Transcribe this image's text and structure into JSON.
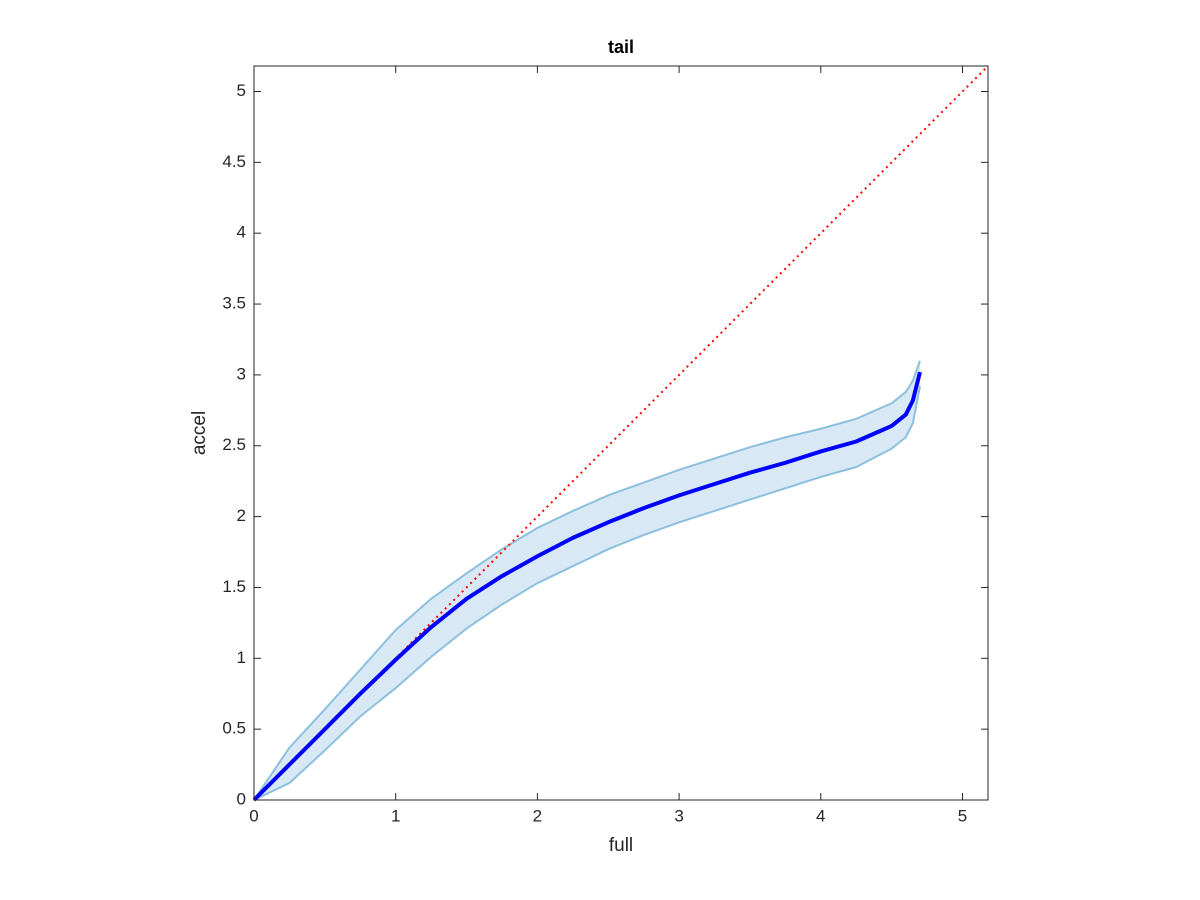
{
  "chart_data": {
    "type": "line",
    "title": "tail",
    "xlabel": "full",
    "ylabel": "accel",
    "xlim": [
      0,
      5.18
    ],
    "ylim": [
      0,
      5.18
    ],
    "xticks": [
      0,
      1,
      2,
      3,
      4,
      5
    ],
    "yticks": [
      0,
      0.5,
      1,
      1.5,
      2,
      2.5,
      3,
      3.5,
      4,
      4.5,
      5
    ],
    "x": [
      0,
      0.25,
      0.5,
      0.75,
      1,
      1.25,
      1.5,
      1.75,
      2,
      2.25,
      2.5,
      2.75,
      3,
      3.25,
      3.5,
      3.75,
      4,
      4.25,
      4.5,
      4.6,
      4.65,
      4.7
    ],
    "series": [
      {
        "color": "#0000ff",
        "values": [
          0,
          0.25,
          0.5,
          0.75,
          0.99,
          1.22,
          1.42,
          1.58,
          1.72,
          1.85,
          1.96,
          2.06,
          2.15,
          2.23,
          2.31,
          2.38,
          2.46,
          2.53,
          2.64,
          2.72,
          2.82,
          3.02
        ]
      }
    ],
    "band": {
      "fill": "#d8e8f5",
      "edge": "#8cc0de",
      "upper": [
        0,
        0.37,
        0.64,
        0.92,
        1.2,
        1.42,
        1.6,
        1.77,
        1.92,
        2.04,
        2.15,
        2.24,
        2.33,
        2.41,
        2.49,
        2.56,
        2.62,
        2.69,
        2.8,
        2.88,
        2.96,
        3.1
      ],
      "lower": [
        0,
        0.12,
        0.35,
        0.59,
        0.79,
        1.01,
        1.21,
        1.38,
        1.53,
        1.65,
        1.77,
        1.87,
        1.96,
        2.04,
        2.12,
        2.2,
        2.28,
        2.35,
        2.48,
        2.56,
        2.66,
        2.92
      ]
    },
    "reference": {
      "x": [
        0,
        5.18
      ],
      "values": [
        0,
        5.18
      ],
      "color": "#ff0000",
      "style": "dotted"
    }
  }
}
